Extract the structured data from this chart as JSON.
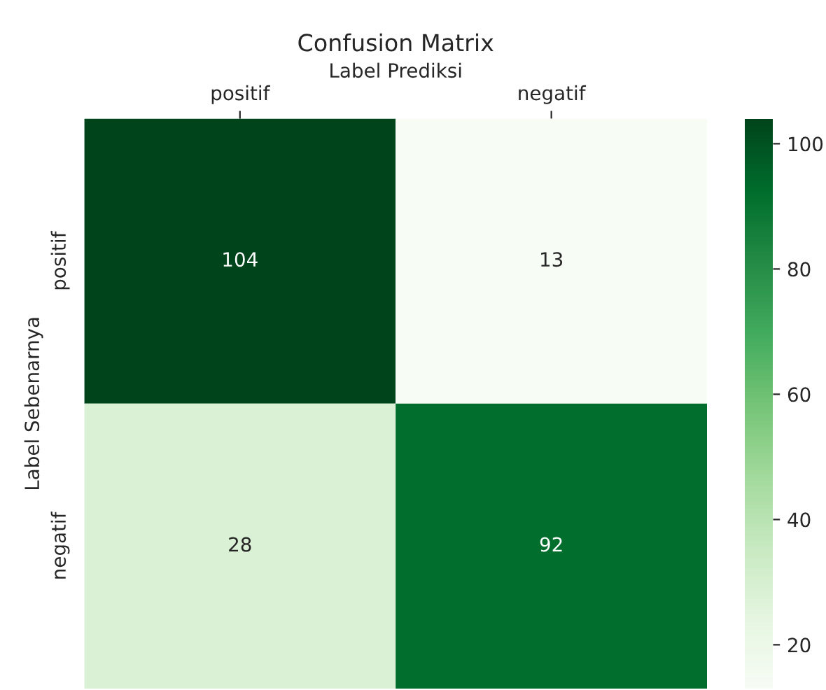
{
  "chart_data": {
    "type": "heatmap",
    "title": "Confusion Matrix",
    "xlabel": "Label Prediksi",
    "ylabel": "Label Sebenarnya",
    "categories": [
      "positif",
      "negatif"
    ],
    "y_categories": [
      "positif",
      "negatif"
    ],
    "cells": [
      [
        104,
        13
      ],
      [
        28,
        92
      ]
    ],
    "clim": [
      13,
      104
    ],
    "cticks": [
      20,
      40,
      60,
      80,
      100
    ],
    "data_labels": true
  }
}
